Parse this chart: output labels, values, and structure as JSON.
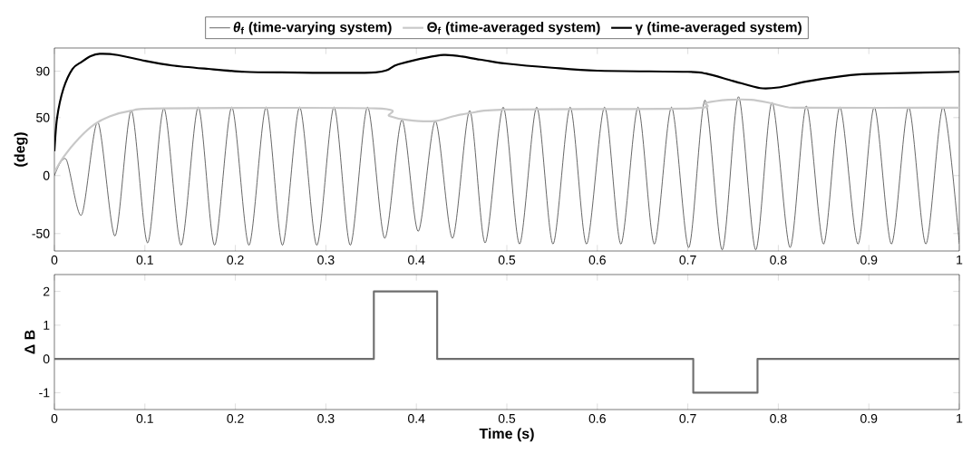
{
  "chart_data": [
    {
      "type": "line",
      "ylabel": "(deg)",
      "xlim": [
        0,
        1
      ],
      "ylim": [
        -65,
        110
      ],
      "xticks": [
        0,
        0.1,
        0.2,
        0.3,
        0.4,
        0.5,
        0.6,
        0.7,
        0.8,
        0.9,
        1
      ],
      "yticks": [
        -50,
        0,
        50,
        90
      ],
      "legend": "top",
      "series": [
        {
          "name": "*θ*$_{f}$ (time-varying system)",
          "color": "#404040",
          "x": [
            0,
            0.013,
            0.03,
            0.048,
            0.067,
            0.085,
            0.103,
            0.121,
            0.14,
            0.159,
            0.177,
            0.196,
            0.215,
            0.234,
            0.252,
            0.271,
            0.29,
            0.309,
            0.327,
            0.346,
            0.365,
            0.384,
            0.402,
            0.421,
            0.44,
            0.459,
            0.476,
            0.496,
            0.514,
            0.533,
            0.551,
            0.57,
            0.588,
            0.608,
            0.626,
            0.645,
            0.663,
            0.682,
            0.701,
            0.719,
            0.738,
            0.756,
            0.775,
            0.793,
            0.813,
            0.831,
            0.85,
            0.868,
            0.888,
            0.906,
            0.925,
            0.944,
            0.963,
            0.982,
            1.0
          ],
          "values": [
            0,
            14,
            -34,
            46,
            -52,
            56,
            -58,
            58,
            -60,
            59,
            -60,
            59,
            -60,
            59,
            -60,
            59,
            -60,
            59,
            -60,
            59,
            -54,
            48,
            -48,
            47,
            -54,
            56,
            -58,
            59,
            -59,
            59,
            -59,
            59,
            -59,
            59,
            -59,
            59,
            -59,
            59,
            -62,
            65,
            -64,
            68,
            -64,
            63,
            -62,
            60,
            -59,
            59,
            -59,
            59,
            -59,
            59,
            -59,
            59,
            -59
          ]
        },
        {
          "name": "Θ$_{f}$ (time-averaged system)",
          "color": "#c8c8c8",
          "x": [
            0,
            0.01,
            0.027,
            0.044,
            0.061,
            0.085,
            0.12,
            0.355,
            0.37,
            0.39,
            0.42,
            0.44,
            0.46,
            0.5,
            0.705,
            0.72,
            0.745,
            0.77,
            0.79,
            0.81,
            0.83,
            1.0
          ],
          "values": [
            3,
            16,
            32,
            44,
            51,
            56,
            58,
            58,
            51.5,
            48,
            47,
            51,
            54,
            57,
            58,
            62.7,
            65.4,
            65.4,
            62.7,
            59,
            58.5,
            58.5
          ]
        },
        {
          "name": "γ (time-averaged system)",
          "color": "#000000",
          "x": [
            0,
            0.003,
            0.01,
            0.02,
            0.03,
            0.04,
            0.05,
            0.07,
            0.1,
            0.13,
            0.17,
            0.21,
            0.25,
            0.355,
            0.38,
            0.43,
            0.47,
            0.5,
            0.55,
            0.6,
            0.7,
            0.72,
            0.75,
            0.78,
            0.8,
            0.83,
            0.87,
            0.9,
            1.0
          ],
          "values": [
            21,
            50,
            75,
            92,
            98,
            103,
            105,
            104,
            99,
            95,
            92,
            89.5,
            89,
            89,
            96,
            104,
            100,
            96.5,
            93,
            90.5,
            89.5,
            88,
            81.6,
            75.4,
            76,
            81,
            85.7,
            87.6,
            89.5
          ]
        }
      ]
    },
    {
      "type": "step",
      "xlabel": "Time (s)",
      "ylabel": "Δ B",
      "xlim": [
        0,
        1
      ],
      "ylim": [
        -1.5,
        2.5
      ],
      "xticks": [
        0,
        0.1,
        0.2,
        0.3,
        0.4,
        0.5,
        0.6,
        0.7,
        0.8,
        0.9,
        1
      ],
      "yticks": [
        -1,
        0,
        1,
        2
      ],
      "series": [
        {
          "color": "#6e6e6e",
          "x": [
            0,
            0.353,
            0.423,
            0.706,
            0.777,
            1
          ],
          "values": [
            0,
            2,
            0,
            -1,
            0,
            0
          ]
        }
      ]
    }
  ]
}
